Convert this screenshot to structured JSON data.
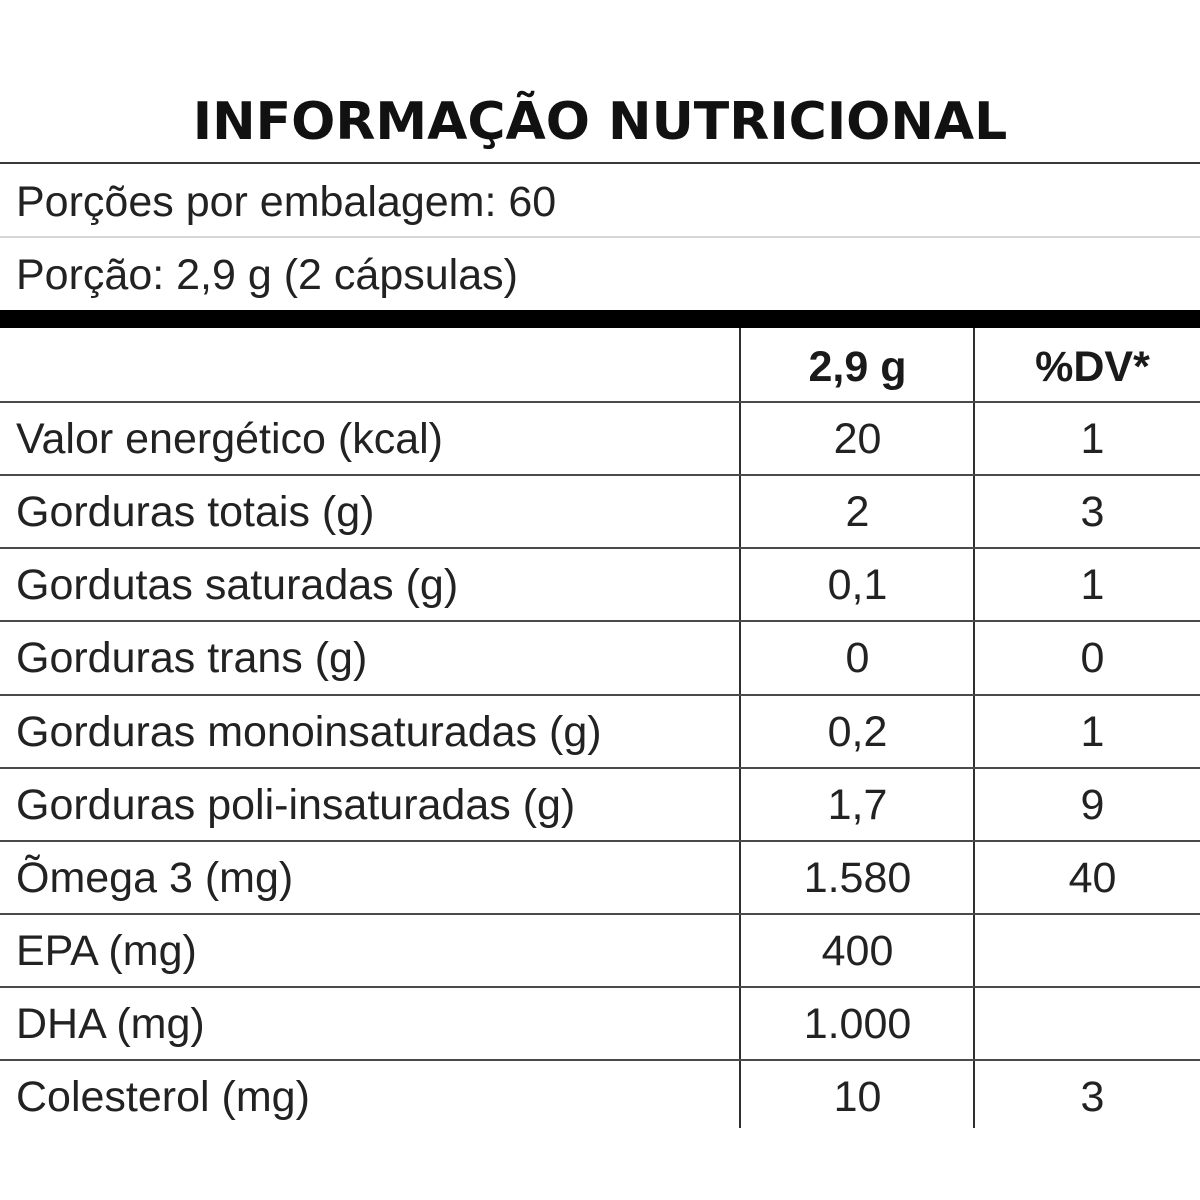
{
  "title": "INFORMAÇÃO NUTRICIONAL",
  "servings_per_package": "Porções por embalagem: 60",
  "serving_size": "Porção: 2,9 g (2 cápsulas)",
  "columns": {
    "amount": "2,9 g",
    "dv": "%DV*"
  },
  "rows": [
    {
      "label": "Valor energético (kcal)",
      "amount": "20",
      "dv": "1"
    },
    {
      "label": "Gorduras totais (g)",
      "amount": "2",
      "dv": "3"
    },
    {
      "label": "Gordutas saturadas (g)",
      "amount": "0,1",
      "dv": "1"
    },
    {
      "label": "Gorduras trans (g)",
      "amount": "0",
      "dv": "0"
    },
    {
      "label": "Gorduras monoinsaturadas (g)",
      "amount": "0,2",
      "dv": "1"
    },
    {
      "label": "Gorduras poli-insaturadas (g)",
      "amount": "1,7",
      "dv": "9"
    },
    {
      "label": "Õmega 3 (mg)",
      "amount": "1.580",
      "dv": "40"
    },
    {
      "label": "EPA (mg)",
      "amount": "400",
      "dv": ""
    },
    {
      "label": "DHA (mg)",
      "amount": "1.000",
      "dv": ""
    },
    {
      "label": "Colesterol (mg)",
      "amount": "10",
      "dv": "3"
    }
  ]
}
